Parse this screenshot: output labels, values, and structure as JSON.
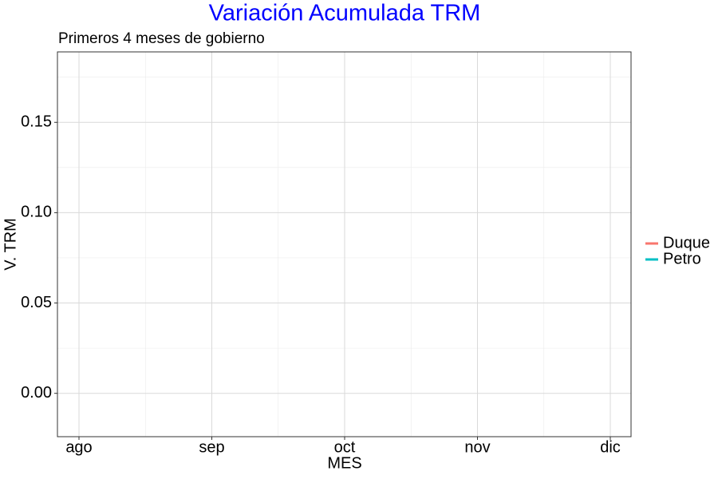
{
  "chart_data": {
    "type": "line",
    "title": "Variación Acumulada TRM",
    "subtitle": "Primeros 4 meses de gobierno",
    "x_label": "MES",
    "y_label": "V. TRM",
    "categories": [
      "ago",
      "sep",
      "oct",
      "nov",
      "dic"
    ],
    "series": [
      {
        "name": "Duque",
        "color": "#F8766D",
        "values": [
          null,
          null,
          null,
          null,
          null
        ]
      },
      {
        "name": "Petro",
        "color": "#00BFC4",
        "values": [
          null,
          null,
          null,
          null,
          null
        ]
      }
    ],
    "ylim": [
      -0.024,
      0.189
    ],
    "yticks": [
      {
        "value": 0,
        "label": "0.00"
      },
      0.05,
      {
        "value": 0.1,
        "label": "0.10"
      },
      0.15
    ],
    "minor_yticks": [
      0.025,
      0.075,
      0.125,
      0.175
    ],
    "grid": true,
    "legend": "right"
  }
}
